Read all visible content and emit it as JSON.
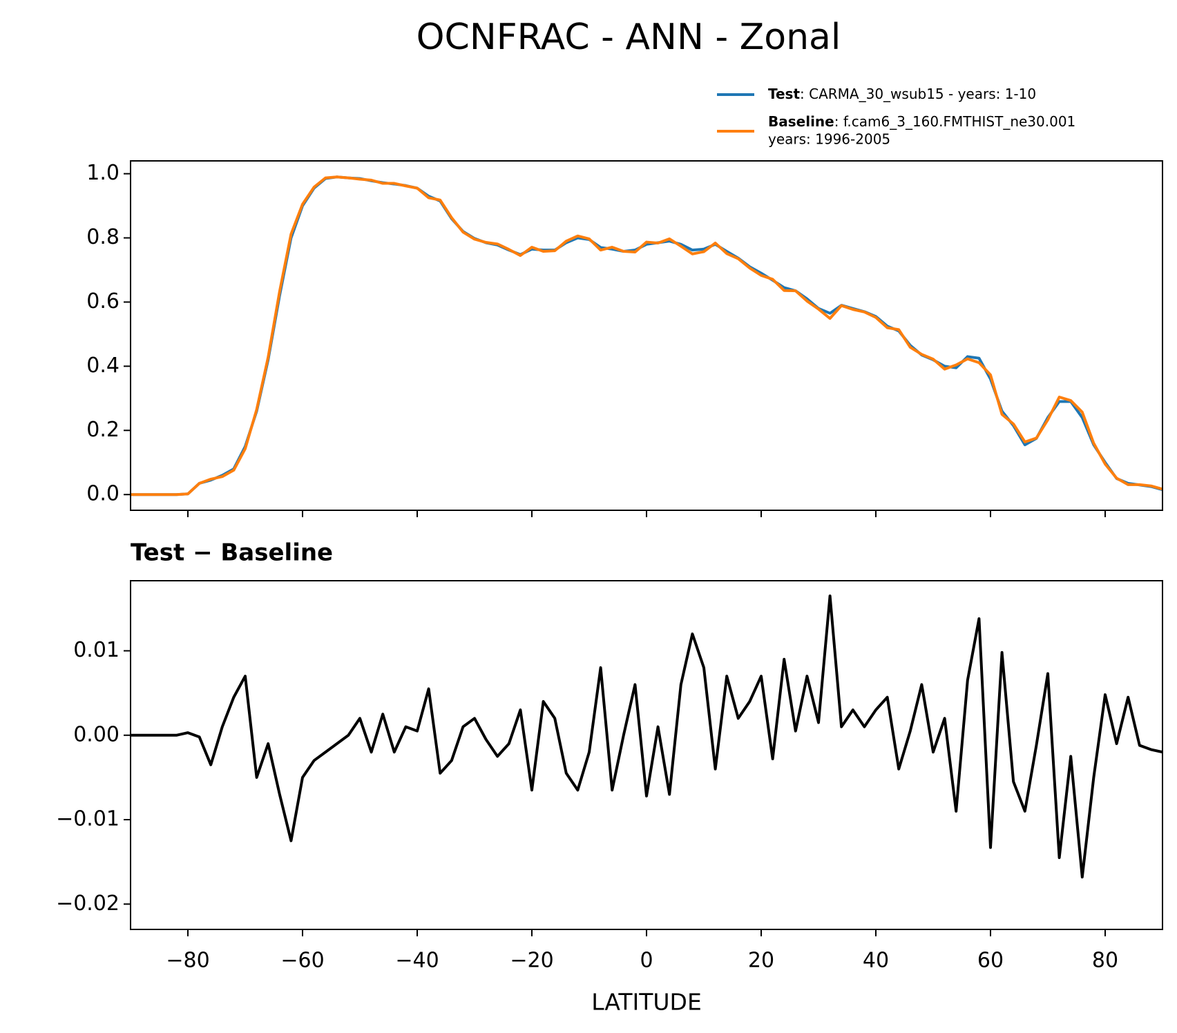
{
  "title": "OCNFRAC - ANN - Zonal",
  "chart_data": [
    {
      "type": "line",
      "x": [
        -90,
        -88,
        -86,
        -84,
        -82,
        -80,
        -78,
        -76,
        -74,
        -72,
        -70,
        -68,
        -66,
        -64,
        -62,
        -60,
        -58,
        -56,
        -54,
        -52,
        -50,
        -48,
        -46,
        -44,
        -42,
        -40,
        -38,
        -36,
        -34,
        -32,
        -30,
        -28,
        -26,
        -24,
        -22,
        -20,
        -18,
        -16,
        -14,
        -12,
        -10,
        -8,
        -6,
        -4,
        -2,
        0,
        2,
        4,
        6,
        8,
        10,
        12,
        14,
        16,
        18,
        20,
        22,
        24,
        26,
        28,
        30,
        32,
        34,
        36,
        38,
        40,
        42,
        44,
        46,
        48,
        50,
        52,
        54,
        56,
        58,
        60,
        62,
        64,
        66,
        68,
        70,
        72,
        74,
        76,
        78,
        80,
        82,
        84,
        86,
        88,
        90
      ],
      "series": [
        {
          "name": "Test",
          "description": [
            ": CARMA_30_wsub15 - years: 1-10"
          ],
          "color": "#1f77b4",
          "values": [
            0,
            0,
            0,
            0,
            0,
            0.002,
            0.035,
            0.045,
            0.06,
            0.08,
            0.15,
            0.26,
            0.42,
            0.62,
            0.8,
            0.9,
            0.955,
            0.985,
            0.99,
            0.987,
            0.985,
            0.978,
            0.972,
            0.968,
            0.963,
            0.955,
            0.93,
            0.915,
            0.86,
            0.82,
            0.798,
            0.785,
            0.778,
            0.762,
            0.748,
            0.765,
            0.762,
            0.762,
            0.785,
            0.8,
            0.795,
            0.77,
            0.765,
            0.758,
            0.762,
            0.78,
            0.785,
            0.79,
            0.78,
            0.762,
            0.765,
            0.78,
            0.758,
            0.737,
            0.71,
            0.69,
            0.668,
            0.645,
            0.635,
            0.61,
            0.58,
            0.565,
            0.59,
            0.58,
            0.57,
            0.555,
            0.525,
            0.51,
            0.465,
            0.435,
            0.42,
            0.4,
            0.395,
            0.43,
            0.425,
            0.36,
            0.26,
            0.215,
            0.155,
            0.175,
            0.24,
            0.29,
            0.29,
            0.24,
            0.155,
            0.1,
            0.05,
            0.035,
            0.03,
            0.025,
            0.015
          ]
        },
        {
          "name": "Baseline",
          "description": [
            ": f.cam6_3_160.FMTHIST_ne30.001",
            "years: 1996-2005"
          ],
          "color": "#ff7f0e",
          "values": [
            0,
            0,
            0,
            0,
            0,
            0.002,
            0.035,
            0.048,
            0.056,
            0.076,
            0.143,
            0.265,
            0.428,
            0.633,
            0.812,
            0.905,
            0.958,
            0.987,
            0.99,
            0.987,
            0.983,
            0.98,
            0.97,
            0.97,
            0.962,
            0.955,
            0.925,
            0.918,
            0.863,
            0.818,
            0.796,
            0.786,
            0.781,
            0.764,
            0.745,
            0.771,
            0.758,
            0.76,
            0.79,
            0.806,
            0.797,
            0.762,
            0.771,
            0.758,
            0.756,
            0.787,
            0.784,
            0.797,
            0.774,
            0.75,
            0.757,
            0.784,
            0.751,
            0.735,
            0.706,
            0.683,
            0.671,
            0.636,
            0.635,
            0.603,
            0.578,
            0.549,
            0.589,
            0.577,
            0.569,
            0.552,
            0.52,
            0.514,
            0.459,
            0.437,
            0.422,
            0.391,
            0.404,
            0.423,
            0.411,
            0.373,
            0.25,
            0.22,
            0.164,
            0.176,
            0.233,
            0.304,
            0.293,
            0.257,
            0.16,
            0.095,
            0.051,
            0.031,
            0.031,
            0.027,
            0.017
          ]
        }
      ],
      "xlim": [
        -90,
        90
      ],
      "xticks": [
        -80,
        -60,
        -40,
        -20,
        0,
        20,
        40,
        60,
        80
      ],
      "ylim": [
        -0.049,
        1.04
      ],
      "yticks": [
        {
          "value": 0,
          "label": "0.0"
        },
        0.2,
        0.4,
        0.6,
        0.8,
        {
          "value": 1,
          "label": "1.0"
        }
      ]
    },
    {
      "type": "line",
      "title": "Test − Baseline",
      "xlabel": "LATITUDE",
      "x": [
        -90,
        -88,
        -86,
        -84,
        -82,
        -80,
        -78,
        -76,
        -74,
        -72,
        -70,
        -68,
        -66,
        -64,
        -62,
        -60,
        -58,
        -56,
        -54,
        -52,
        -50,
        -48,
        -46,
        -44,
        -42,
        -40,
        -38,
        -36,
        -34,
        -32,
        -30,
        -28,
        -26,
        -24,
        -22,
        -20,
        -18,
        -16,
        -14,
        -12,
        -10,
        -8,
        -6,
        -4,
        -2,
        0,
        2,
        4,
        6,
        8,
        10,
        12,
        14,
        16,
        18,
        20,
        22,
        24,
        26,
        28,
        30,
        32,
        34,
        36,
        38,
        40,
        42,
        44,
        46,
        48,
        50,
        52,
        54,
        56,
        58,
        60,
        62,
        64,
        66,
        68,
        70,
        72,
        74,
        76,
        78,
        80,
        82,
        84,
        86,
        88,
        90
      ],
      "series": [
        {
          "color": "#000000",
          "values": [
            0,
            0,
            0,
            0,
            0,
            0.0003,
            -0.0002,
            -0.0035,
            0.001,
            0.0045,
            0.007,
            -0.005,
            -0.001,
            -0.007,
            -0.0125,
            -0.005,
            -0.003,
            -0.002,
            -0.001,
            0,
            0.002,
            -0.002,
            0.0025,
            -0.002,
            0.001,
            0.0005,
            0.0055,
            -0.0045,
            -0.003,
            0.001,
            0.002,
            -0.0005,
            -0.0025,
            -0.001,
            0.003,
            -0.0065,
            0.004,
            0.002,
            -0.0045,
            -0.0065,
            -0.002,
            0.008,
            -0.0065,
            0,
            0.006,
            -0.0072,
            0.001,
            -0.007,
            0.006,
            0.012,
            0.008,
            -0.004,
            0.007,
            0.002,
            0.004,
            0.007,
            -0.0028,
            0.009,
            0.0005,
            0.007,
            0.0015,
            0.0165,
            0.001,
            0.003,
            0.001,
            0.003,
            0.0045,
            -0.004,
            0.0005,
            0.006,
            -0.002,
            0.002,
            -0.009,
            0.0065,
            0.0138,
            -0.0133,
            0.0098,
            -0.0055,
            -0.009,
            -0.0012,
            0.0073,
            -0.0145,
            -0.0025,
            -0.0168,
            -0.005,
            0.0048,
            -0.001,
            0.0045,
            -0.0012,
            -0.0017,
            -0.002
          ]
        }
      ],
      "xlim": [
        -90,
        90
      ],
      "xticks": [
        {
          "value": -80,
          "label": "−80"
        },
        {
          "value": -60,
          "label": "−60"
        },
        {
          "value": -40,
          "label": "−40"
        },
        {
          "value": -20,
          "label": "−20"
        },
        0,
        20,
        40,
        60,
        80
      ],
      "ylim": [
        -0.023,
        0.0183
      ],
      "yticks": [
        {
          "value": -0.02,
          "label": "−0.02"
        },
        {
          "value": -0.01,
          "label": "−0.01"
        },
        {
          "value": 0,
          "label": "0.00"
        },
        0.01
      ]
    }
  ]
}
